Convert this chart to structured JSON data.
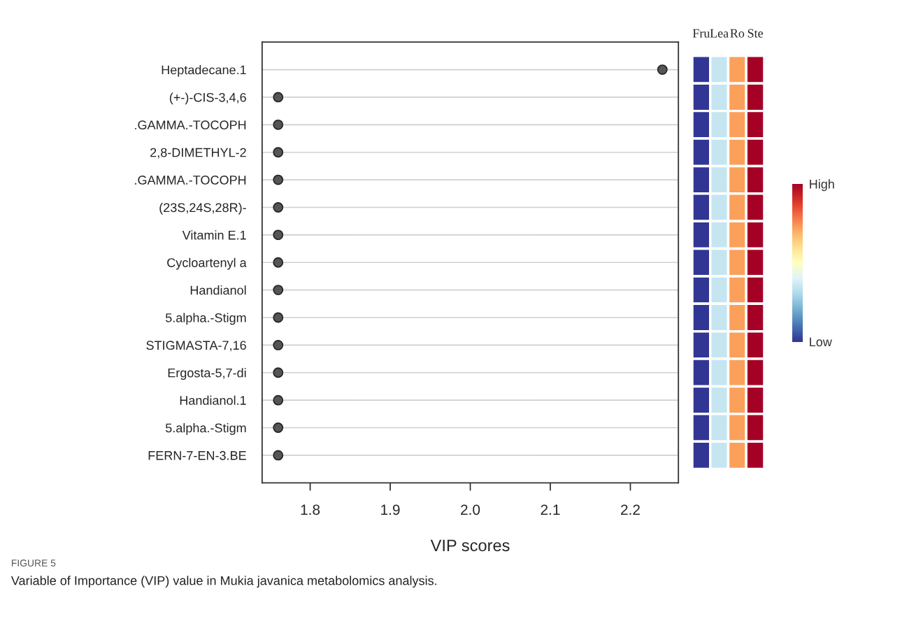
{
  "chart_data": [
    {
      "type": "scatter",
      "xlabel": "VIP scores",
      "categories": [
        "Heptadecane.1",
        "(+-)-CIS-3,4,6",
        ".GAMMA.-TOCOPH",
        "2,8-DIMETHYL-2",
        ".GAMMA.-TOCOPH",
        "(23S,24S,28R)-",
        "Vitamin E.1",
        "Cycloartenyl a",
        "Handianol",
        "5.alpha.-Stigm",
        "STIGMASTA-7,16",
        "Ergosta-5,7-di",
        "Handianol.1",
        "5.alpha.-Stigm",
        "FERN-7-EN-3.BE"
      ],
      "values": [
        2.24,
        1.76,
        1.76,
        1.76,
        1.76,
        1.76,
        1.76,
        1.76,
        1.76,
        1.76,
        1.76,
        1.76,
        1.76,
        1.76,
        1.76
      ],
      "orientation": "horizontal",
      "color": "#555555",
      "marker": "circle",
      "grid": "y",
      "xlim": [
        1.74,
        2.26
      ],
      "xticks": [
        1.8,
        1.9,
        {
          "value": 2.0,
          "label": "2.0"
        },
        2.1,
        2.2
      ],
      "annotations": [
        "FIGURE 5",
        "Variable of Importance (VIP) value in Mukia javanica metabolomics analysis."
      ]
    },
    {
      "type": "heatmap",
      "categories": [
        "Fru",
        "Lea",
        "Ro",
        "Ste"
      ],
      "y_categories": [
        null,
        null,
        null,
        null,
        null,
        null,
        null,
        null,
        null,
        null,
        null,
        null,
        null,
        null,
        null
      ],
      "cells": [
        [
          0,
          0.35,
          0.72,
          1
        ],
        [
          0,
          0.35,
          0.72,
          1
        ],
        [
          0,
          0.35,
          0.72,
          1
        ],
        [
          0,
          0.35,
          0.72,
          1
        ],
        [
          0,
          0.35,
          0.72,
          1
        ],
        [
          0,
          0.35,
          0.72,
          1
        ],
        [
          0,
          0.35,
          0.72,
          1
        ],
        [
          0,
          0.35,
          0.72,
          1
        ],
        [
          0,
          0.35,
          0.72,
          1
        ],
        [
          0,
          0.35,
          0.72,
          1
        ],
        [
          0,
          0.35,
          0.72,
          1
        ],
        [
          0,
          0.35,
          0.72,
          1
        ],
        [
          0,
          0.35,
          0.72,
          1
        ],
        [
          0,
          0.35,
          0.72,
          1
        ],
        [
          0,
          0.35,
          0.72,
          1
        ]
      ],
      "clim": [
        0,
        1
      ],
      "cticks": [
        {
          "value": 0,
          "label": "Low"
        },
        {
          "value": 1,
          "label": "High"
        }
      ]
    }
  ]
}
